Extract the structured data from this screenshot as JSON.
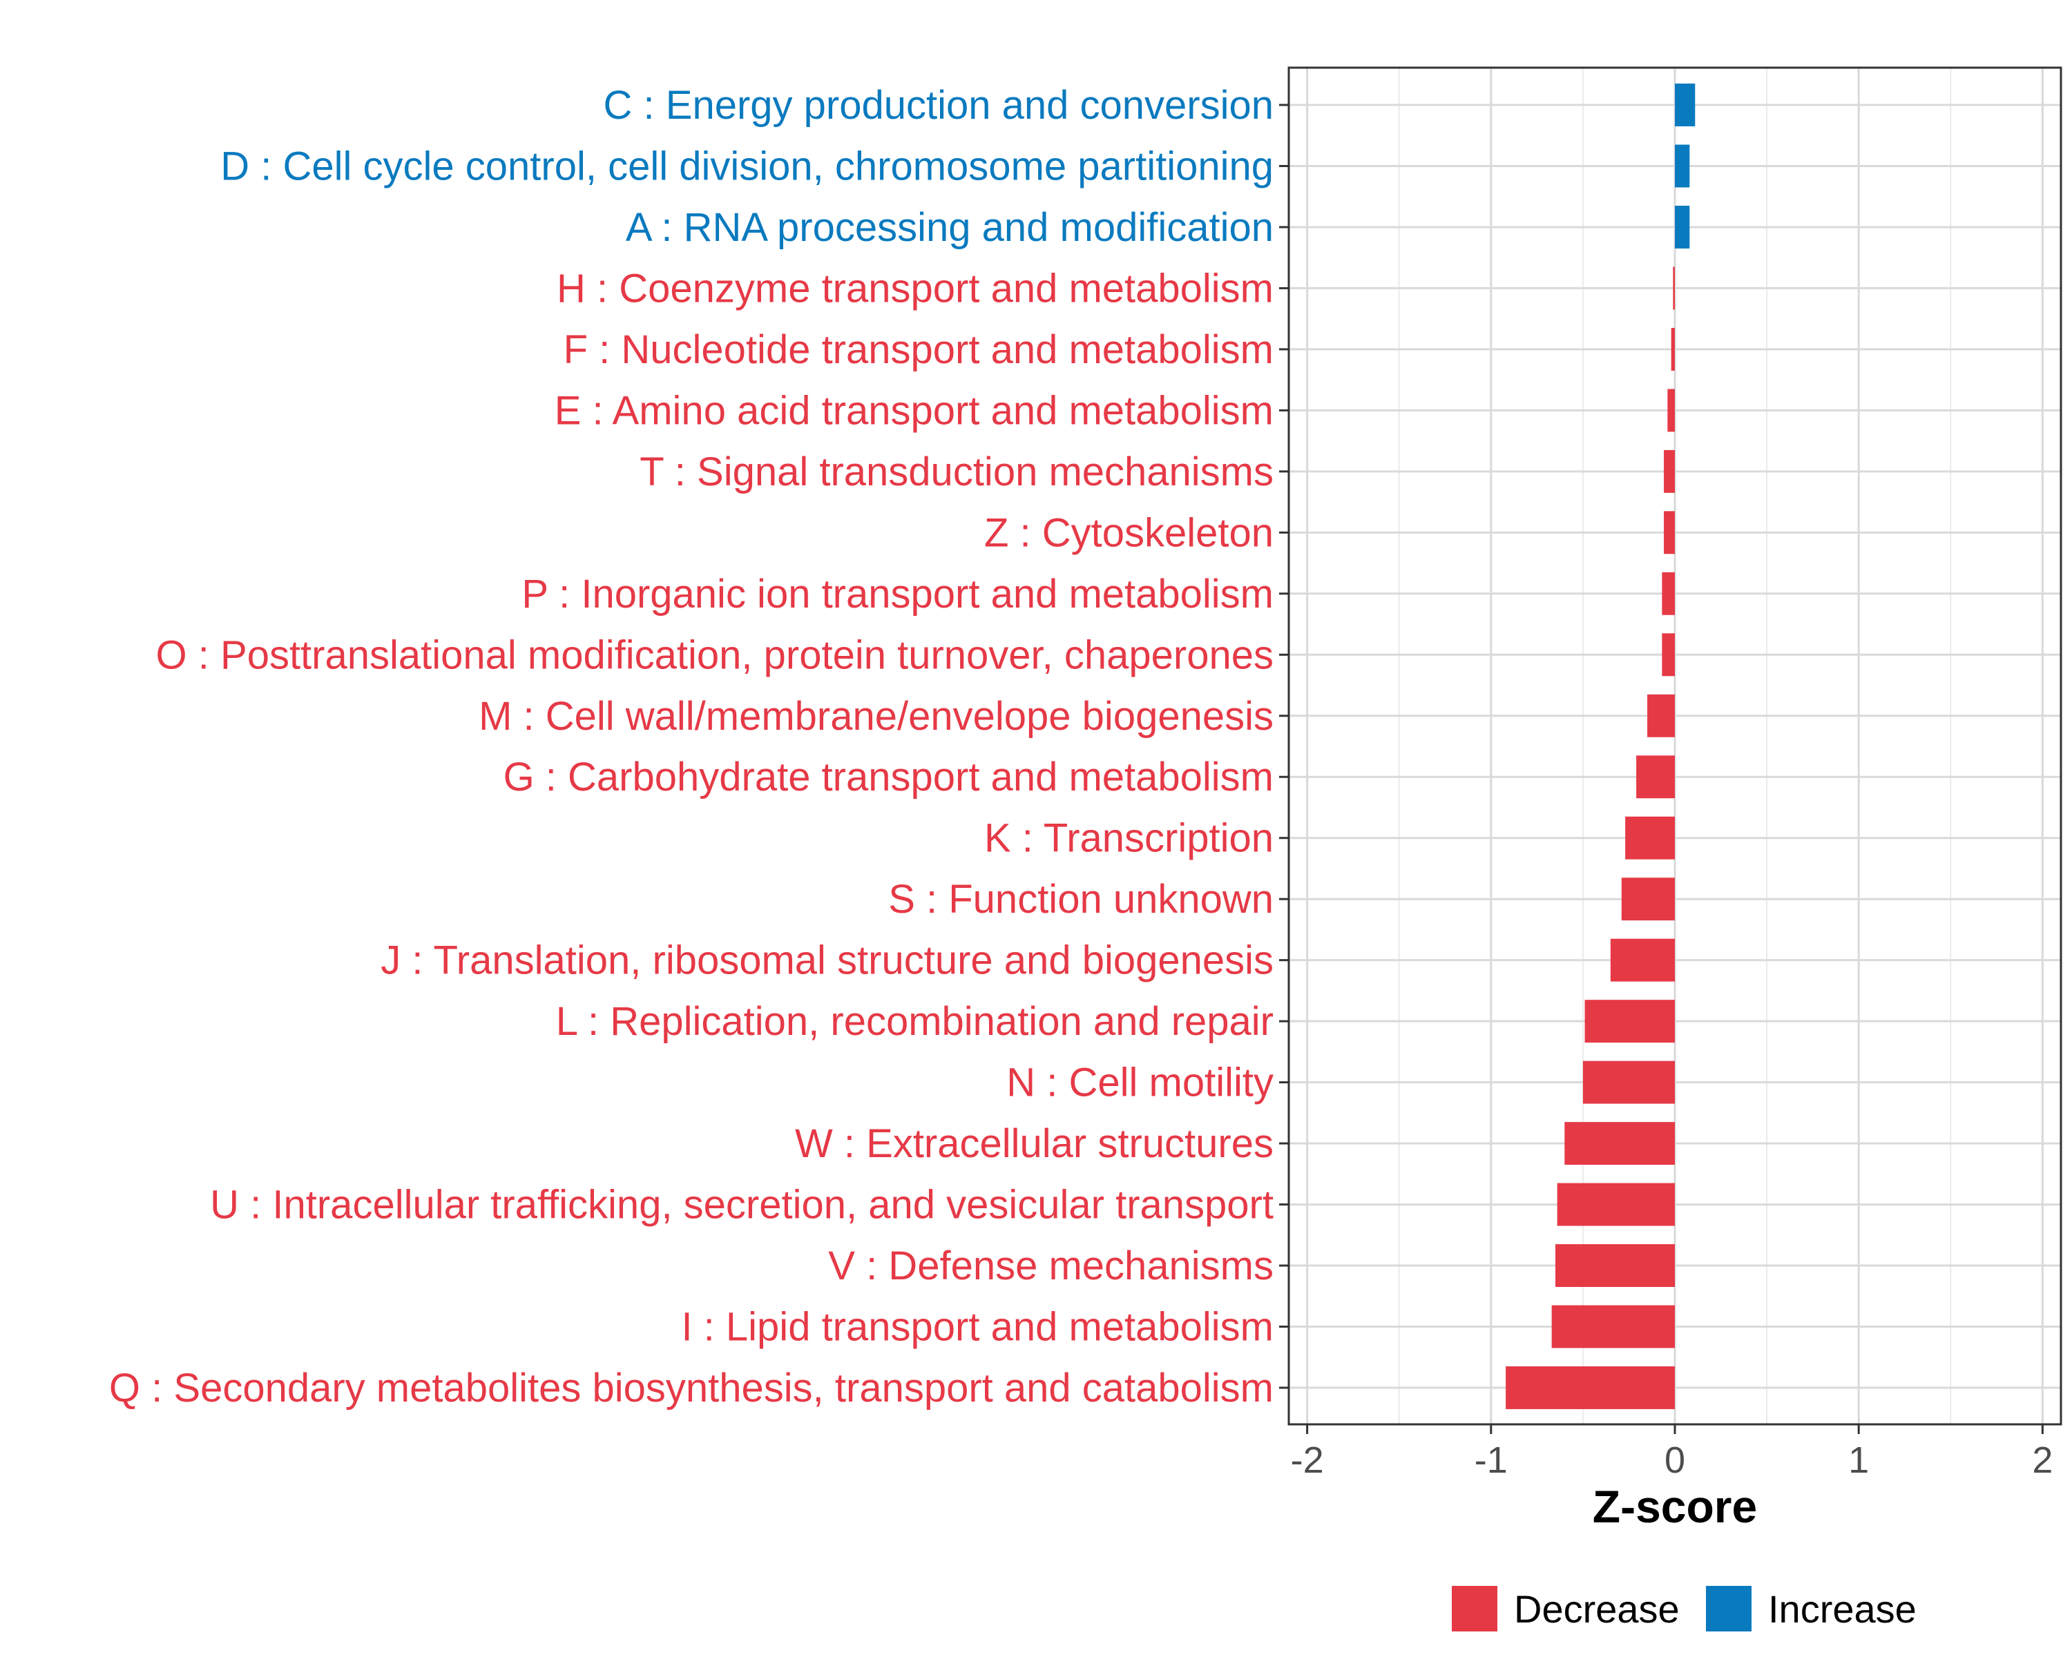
{
  "chart_data": {
    "type": "bar",
    "orientation": "horizontal",
    "xlabel": "Z-score",
    "ylabel": "",
    "xlim": [
      -2.1,
      2.1
    ],
    "xticks": [
      -2,
      -1,
      0,
      1,
      2
    ],
    "xtick_labels": [
      "-2",
      "-1",
      "0",
      "1",
      "2"
    ],
    "grid": true,
    "legend_position": "bottom",
    "colors": {
      "Decrease": "#e63946",
      "Increase": "#0a7abf"
    },
    "categories": [
      "C : Energy production and conversion",
      "D : Cell cycle control, cell division, chromosome partitioning",
      "A : RNA processing and modification",
      "H : Coenzyme transport and metabolism",
      "F : Nucleotide transport and metabolism",
      "E : Amino acid transport and metabolism",
      "T : Signal transduction mechanisms",
      "Z : Cytoskeleton",
      "P : Inorganic ion transport and metabolism",
      "O : Posttranslational modification, protein turnover, chaperones",
      "M : Cell wall/membrane/envelope biogenesis",
      "G : Carbohydrate transport and metabolism",
      "K : Transcription",
      "S : Function unknown",
      "J : Translation, ribosomal structure and biogenesis",
      "L : Replication, recombination and repair",
      "N : Cell motility",
      "W : Extracellular structures",
      "U : Intracellular trafficking, secretion, and vesicular transport",
      "V : Defense mechanisms",
      "I : Lipid transport and metabolism",
      "Q : Secondary metabolites biosynthesis, transport and catabolism"
    ],
    "values": [
      0.11,
      0.08,
      0.08,
      -0.01,
      -0.02,
      -0.04,
      -0.06,
      -0.06,
      -0.07,
      -0.07,
      -0.15,
      -0.21,
      -0.27,
      -0.29,
      -0.35,
      -0.49,
      -0.5,
      -0.6,
      -0.64,
      -0.65,
      -0.67,
      -0.92
    ],
    "groups": [
      "Increase",
      "Increase",
      "Increase",
      "Decrease",
      "Decrease",
      "Decrease",
      "Decrease",
      "Decrease",
      "Decrease",
      "Decrease",
      "Decrease",
      "Decrease",
      "Decrease",
      "Decrease",
      "Decrease",
      "Decrease",
      "Decrease",
      "Decrease",
      "Decrease",
      "Decrease",
      "Decrease",
      "Decrease"
    ],
    "legend": [
      "Decrease",
      "Increase"
    ]
  }
}
